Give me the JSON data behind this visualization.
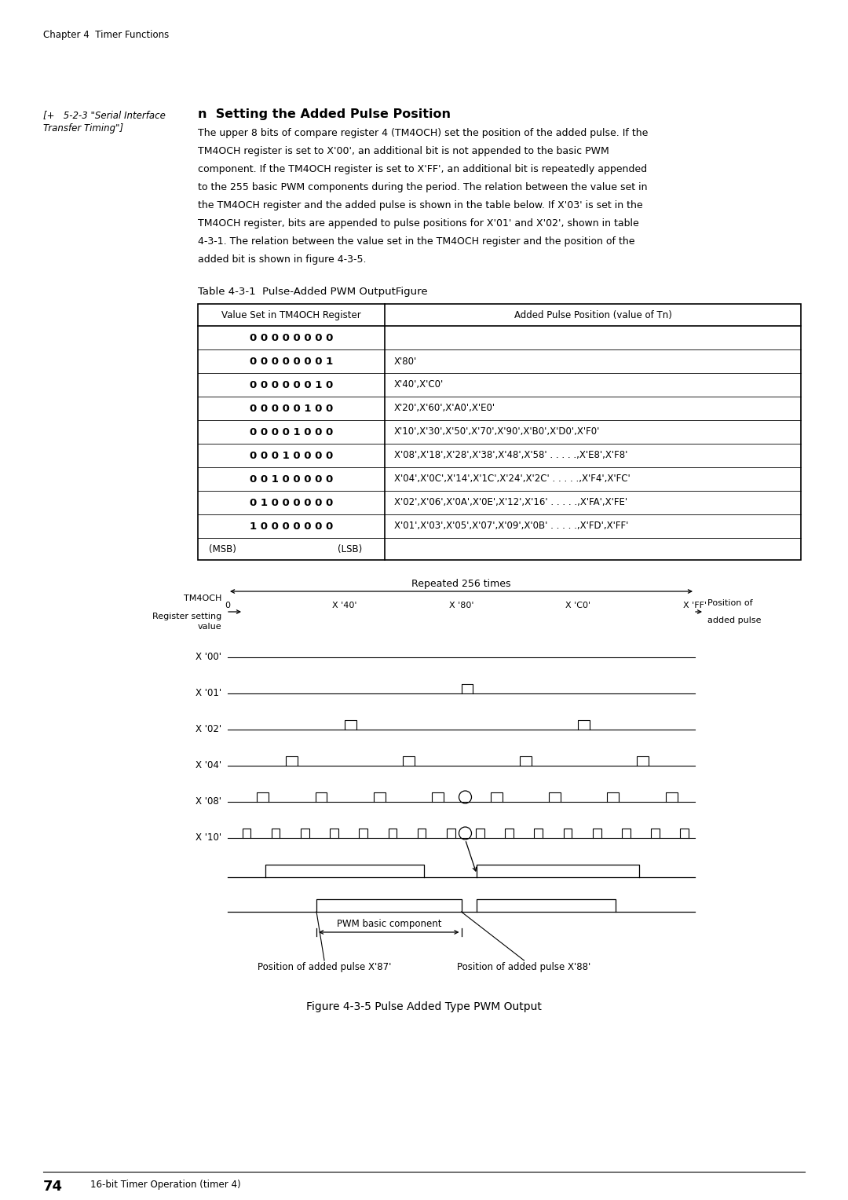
{
  "page_title": "Chapter 4  Timer Functions",
  "left_note_line1": "[+   5-2-3 \"Serial Interface",
  "left_note_line2": "Transfer Timing\"]",
  "section_title": "n  Setting the Added Pulse Position",
  "table_title": "Table 4-3-1  Pulse-Added PWM OutputFigure",
  "table_col1": "Value Set in TM4OCH Register",
  "table_col2": "Added Pulse Position (value of Tn)",
  "table_rows": [
    [
      "0 0 0 0 0 0 0 0",
      ""
    ],
    [
      "0 0 0 0 0 0 0 1",
      "X'80'"
    ],
    [
      "0 0 0 0 0 0 1 0",
      "X'40',X'C0'"
    ],
    [
      "0 0 0 0 0 1 0 0",
      "X'20',X'60',X'A0',X'E0'"
    ],
    [
      "0 0 0 0 1 0 0 0",
      "X'10',X'30',X'50',X'70',X'90',X'B0',X'D0',X'F0'"
    ],
    [
      "0 0 0 1 0 0 0 0",
      "X'08',X'18',X'28',X'38',X'48',X'58' . . . . .,X'E8',X'F8'"
    ],
    [
      "0 0 1 0 0 0 0 0",
      "X'04',X'0C',X'14',X'1C',X'24',X'2C' . . . . .,X'F4',X'FC'"
    ],
    [
      "0 1 0 0 0 0 0 0",
      "X'02',X'06',X'0A',X'0E',X'12',X'16' . . . . .,X'FA',X'FE'"
    ],
    [
      "1 0 0 0 0 0 0 0",
      "X'01',X'03',X'05',X'07',X'09',X'0B' . . . . .,X'FD',X'FF'"
    ]
  ],
  "table_footer": [
    "(MSB)",
    "(LSB)"
  ],
  "figure_title": "Figure 4-3-5 Pulse Added Type PWM Output",
  "repeated_label": "Repeated 256 times",
  "x_axis_labels": [
    "0",
    "X '40'",
    "X '80'",
    "X 'C0'",
    "X 'FF'"
  ],
  "waveform_labels": [
    "X '00'",
    "X '01'",
    "X '02'",
    "X '04'",
    "X '08'",
    "X '10'"
  ],
  "pwm_label": "PWM basic component",
  "added_pulse_87": "Position of added pulse X'87'",
  "added_pulse_88": "Position of added pulse X'88'",
  "footer_page": "74",
  "footer_text": "16-bit Timer Operation (timer 4)",
  "bg_color": "#ffffff",
  "text_color": "#000000"
}
